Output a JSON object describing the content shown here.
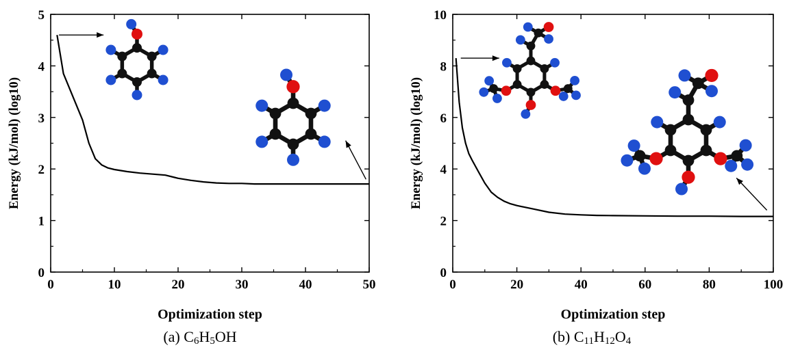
{
  "figure": {
    "panels": [
      {
        "caption_prefix": "(a) ",
        "formula": [
          {
            "t": "C",
            "s": false
          },
          {
            "t": "6",
            "s": true
          },
          {
            "t": "H",
            "s": false
          },
          {
            "t": "5",
            "s": true
          },
          {
            "t": "OH",
            "s": false
          }
        ]
      },
      {
        "caption_prefix": "(b) ",
        "formula": [
          {
            "t": "C",
            "s": false
          },
          {
            "t": "11",
            "s": true
          },
          {
            "t": "H",
            "s": false
          },
          {
            "t": "12",
            "s": true
          },
          {
            "t": "O",
            "s": false
          },
          {
            "t": "4",
            "s": true
          }
        ]
      }
    ]
  },
  "colors": {
    "line": "#000000",
    "carbon_atom": "#111111",
    "hydrogen_atom": "#1f4fd1",
    "oxygen_atom": "#e01010",
    "bond": "#111111"
  },
  "chart_data": [
    {
      "type": "line",
      "title": "",
      "xlabel": "Optimization step",
      "ylabel": "Energy (kJ/mol) (log10)",
      "xlim": [
        0,
        50
      ],
      "ylim": [
        0,
        5
      ],
      "xticks": [
        0,
        10,
        20,
        30,
        40,
        50
      ],
      "yticks": [
        0,
        1,
        2,
        3,
        4,
        5
      ],
      "grid": false,
      "series": [
        {
          "x": [
            1,
            2,
            3,
            4,
            5,
            6,
            7,
            8,
            9,
            10,
            12,
            14,
            16,
            18,
            20,
            22,
            24,
            26,
            28,
            30,
            32,
            34,
            36,
            38,
            40,
            42,
            44,
            46,
            48,
            50
          ],
          "y": [
            4.6,
            3.85,
            3.55,
            3.25,
            2.95,
            2.5,
            2.2,
            2.08,
            2.02,
            1.99,
            1.95,
            1.92,
            1.9,
            1.88,
            1.82,
            1.78,
            1.75,
            1.73,
            1.72,
            1.72,
            1.71,
            1.71,
            1.71,
            1.71,
            1.71,
            1.71,
            1.71,
            1.71,
            1.71,
            1.71
          ]
        }
      ],
      "annotations": [
        {
          "type": "arrow",
          "from": [
            1.3,
            4.6
          ],
          "to": [
            8.3,
            4.6
          ],
          "target": "initial molecule structure"
        },
        {
          "type": "arrow",
          "from": [
            49.5,
            1.8
          ],
          "to": [
            46.3,
            2.55
          ],
          "target": "optimized molecule structure"
        }
      ],
      "molecules": [
        "initial",
        "optimized"
      ]
    },
    {
      "type": "line",
      "title": "",
      "xlabel": "Optimization step",
      "ylabel": "Energy (kJ/mol) (log10)",
      "xlim": [
        0,
        100
      ],
      "ylim": [
        0,
        10
      ],
      "xticks": [
        0,
        20,
        40,
        60,
        80,
        100
      ],
      "yticks": [
        0,
        2,
        4,
        6,
        8,
        10
      ],
      "grid": false,
      "series": [
        {
          "x": [
            1,
            2,
            3,
            4,
            5,
            6,
            8,
            10,
            12,
            14,
            16,
            18,
            20,
            25,
            30,
            35,
            40,
            45,
            50,
            60,
            70,
            80,
            90,
            100
          ],
          "y": [
            8.3,
            6.6,
            5.6,
            5.0,
            4.6,
            4.35,
            3.9,
            3.45,
            3.1,
            2.9,
            2.75,
            2.65,
            2.58,
            2.45,
            2.32,
            2.25,
            2.22,
            2.2,
            2.19,
            2.18,
            2.17,
            2.17,
            2.16,
            2.16
          ]
        }
      ],
      "annotations": [
        {
          "type": "arrow",
          "from": [
            2.5,
            8.3
          ],
          "to": [
            14.5,
            8.3
          ],
          "target": "initial molecule structure"
        },
        {
          "type": "arrow",
          "from": [
            98,
            2.4
          ],
          "to": [
            88.5,
            3.65
          ],
          "target": "optimized molecule structure"
        }
      ],
      "molecules": [
        "initial",
        "optimized"
      ]
    }
  ]
}
